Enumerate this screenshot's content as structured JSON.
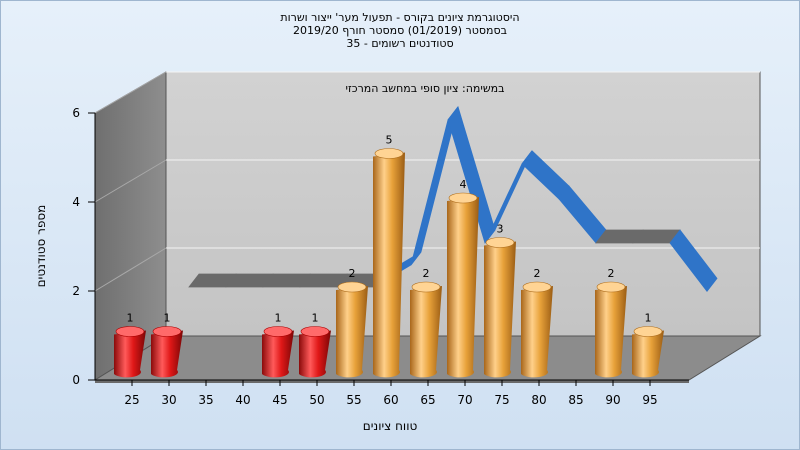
{
  "titles": [
    "היסטוגרמת ציונים בקורס - תפעול מער' ייצור ושרות",
    "בסמסטר (01/2019) סמסטר חורף 2019/20",
    "סטודנטים רשומים - 35"
  ],
  "colors": {
    "red_bar": "#e01818",
    "orange_bar": "#e8a23a",
    "blue_ribbon": "#2f74c8",
    "gray_ribbon": "#6a6a6a"
  },
  "chart_data": {
    "type": "bar",
    "title": "במשימה: ציון סופי במחשב המרכזי",
    "xlabel": "טווח ציונים",
    "ylabel": "מספר סטודנטים",
    "ylim": [
      0,
      6
    ],
    "yticks": [
      "0",
      "2",
      "4",
      "6"
    ],
    "grid": true,
    "categories": [
      "25",
      "30",
      "35",
      "40",
      "45",
      "50",
      "55",
      "60",
      "65",
      "70",
      "75",
      "80",
      "85",
      "90",
      "95"
    ],
    "values": [
      1,
      1,
      0,
      0,
      1,
      1,
      2,
      5,
      2,
      4,
      3,
      2,
      0,
      2,
      1
    ],
    "data_labels": [
      "1",
      "1",
      "",
      "",
      "1",
      "1",
      "2",
      "5",
      "2",
      "4",
      "3",
      "2",
      "",
      "2",
      "1"
    ],
    "failing_categories": [
      "25",
      "30",
      "45",
      "50"
    ],
    "curve": [
      {
        "x": "30",
        "y": 1.5
      },
      {
        "x": "35",
        "y": 1.5
      },
      {
        "x": "40",
        "y": 1.5
      },
      {
        "x": "45",
        "y": 1.5
      },
      {
        "x": "50",
        "y": 1.5
      },
      {
        "x": "55",
        "y": 1.5
      },
      {
        "x": "60",
        "y": 2.0
      },
      {
        "x": "65",
        "y": 5.3
      },
      {
        "x": "70",
        "y": 2.5
      },
      {
        "x": "75",
        "y": 4.3
      },
      {
        "x": "80",
        "y": 3.5
      },
      {
        "x": "85",
        "y": 2.5
      },
      {
        "x": "90",
        "y": 2.5
      },
      {
        "x": "95",
        "y": 2.5
      },
      {
        "x": "100",
        "y": 1.4
      }
    ]
  }
}
